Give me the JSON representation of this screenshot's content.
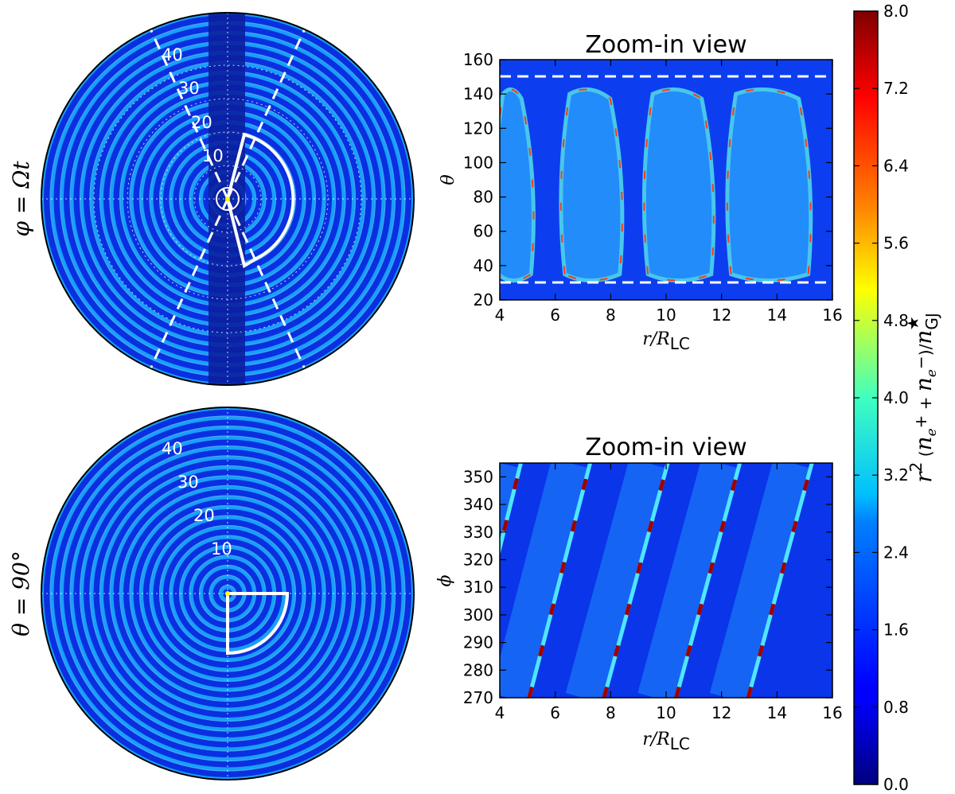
{
  "figure": {
    "colorbar": {
      "label_parts": [
        "r",
        "2",
        " (",
        "n",
        "e",
        "+",
        " + ",
        "n",
        "e",
        "−",
        ")/",
        "n",
        "GJ",
        "★"
      ],
      "ticks": [
        "0.0",
        "0.8",
        "1.6",
        "2.4",
        "3.2",
        "4.0",
        "4.8",
        "5.6",
        "6.4",
        "7.2",
        "8.0"
      ],
      "range": [
        0,
        8
      ]
    },
    "top_left_polar": {
      "row_label": "φ = Ωt",
      "ring_labels": [
        "10",
        "20",
        "30",
        "40"
      ]
    },
    "bottom_left_polar": {
      "row_label": "θ = 90°",
      "ring_labels": [
        "10",
        "20",
        "30",
        "40"
      ]
    },
    "top_right": {
      "title": "Zoom-in view",
      "ylabel": "θ",
      "xlabel": "r/R_LC"
    },
    "bottom_right": {
      "title": "Zoom-in view",
      "ylabel": "ϕ",
      "xlabel": "r/R_LC"
    }
  },
  "chart_data": [
    {
      "type": "heatmap",
      "panel": "top-left",
      "projection": "polar (meridional slice)",
      "row_label": "φ = Ωt",
      "ring_radii": [
        10,
        20,
        30,
        40
      ],
      "colormap": "jet",
      "zrange": [
        0,
        8
      ]
    },
    {
      "type": "heatmap",
      "panel": "top-right",
      "title": "Zoom-in view",
      "xlabel": "r/R_LC",
      "ylabel": "θ",
      "xlim": [
        4,
        16
      ],
      "ylim": [
        20,
        160
      ],
      "xticks": [
        4,
        6,
        8,
        10,
        12,
        14,
        16
      ],
      "yticks": [
        20,
        40,
        60,
        80,
        100,
        120,
        140,
        160
      ],
      "dashed_lines_y": [
        30,
        150
      ],
      "colormap": "jet",
      "zrange": [
        0,
        8
      ]
    },
    {
      "type": "heatmap",
      "panel": "bottom-left",
      "projection": "polar (equatorial slice)",
      "row_label": "θ = 90°",
      "ring_radii": [
        10,
        20,
        30,
        40
      ],
      "colormap": "jet",
      "zrange": [
        0,
        8
      ]
    },
    {
      "type": "heatmap",
      "panel": "bottom-right",
      "title": "Zoom-in view",
      "xlabel": "r/R_LC",
      "ylabel": "ϕ",
      "xlim": [
        4,
        16
      ],
      "ylim": [
        270,
        355
      ],
      "xticks": [
        4,
        6,
        8,
        10,
        12,
        14,
        16
      ],
      "yticks": [
        270,
        280,
        290,
        300,
        310,
        320,
        330,
        340,
        350
      ],
      "colormap": "jet",
      "zrange": [
        0,
        8
      ]
    }
  ]
}
